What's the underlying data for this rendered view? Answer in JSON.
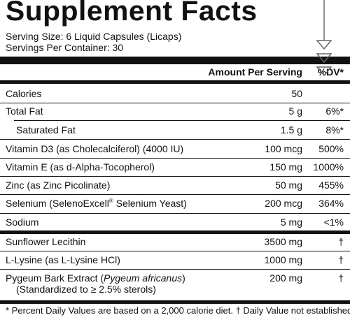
{
  "title": "Supplement Facts",
  "serving_size": "Serving Size: 6 Liquid Capsules (Licaps)",
  "servings_per_container": "Servings Per Container: 30",
  "header": {
    "amount": "Amount Per Serving",
    "dv": "%DV*"
  },
  "rows": [
    {
      "name": "Calories",
      "amount": "50",
      "dv": ""
    },
    {
      "name": "Total Fat",
      "amount": "5 g",
      "dv": "6%*"
    },
    {
      "name": "Saturated Fat",
      "amount": "1.5 g",
      "dv": "8%*"
    },
    {
      "name": "Vitamin D3 (as Cholecalciferol) (4000 IU)",
      "amount": "100 mcg",
      "dv": "500%"
    },
    {
      "name": "Vitamin E (as d-Alpha-Tocopherol)",
      "amount": "150 mg",
      "dv": "1000%"
    },
    {
      "name": "Zinc (as Zinc Picolinate)",
      "amount": "50 mg",
      "dv": "455%"
    },
    {
      "name_pre": "Selenium (SelenoExcell",
      "name_sup": "®",
      "name_post": " Selenium Yeast)",
      "amount": "200 mcg",
      "dv": "364%"
    },
    {
      "name": "Sodium",
      "amount": "5 mg",
      "dv": "<1%"
    },
    {
      "name": "Sunflower Lecithin",
      "amount": "3500 mg",
      "dv": "†"
    },
    {
      "name": "L-Lysine (as L-Lysine HCl)",
      "amount": "1000 mg",
      "dv": "†"
    },
    {
      "name_pre": "Pygeum Bark Extract (",
      "name_italic": "Pygeum africanus",
      "name_post": ")",
      "name_line2": "(Standardized to ≥ 2.5% sterols)",
      "amount": "200 mg",
      "dv": "†"
    }
  ],
  "footnote": "* Percent Daily Values are based on a 2,000 calorie diet. † Daily Value not established."
}
